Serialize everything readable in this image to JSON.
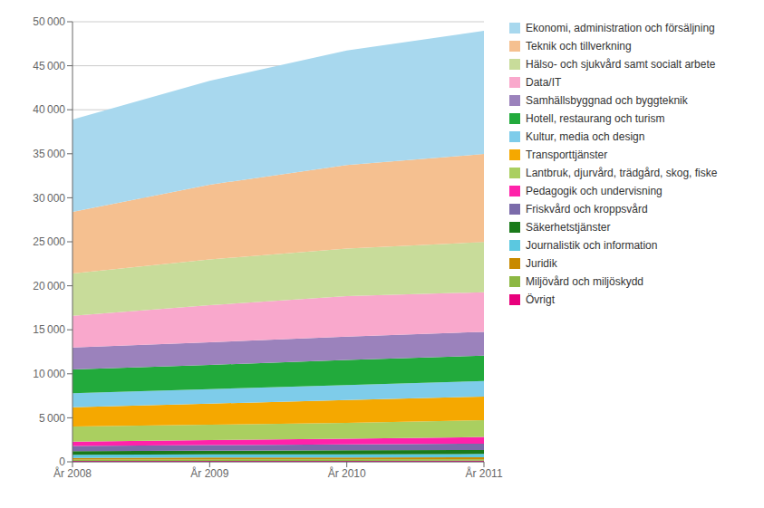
{
  "chart_data": {
    "type": "area",
    "stacked": true,
    "grid": true,
    "legend": "right",
    "categories": [
      "År 2008",
      "År 2009",
      "År 2010",
      "År 2011"
    ],
    "series": [
      {
        "name": "Övrigt",
        "color": "#E8007C",
        "values": [
          100,
          110,
          110,
          120
        ]
      },
      {
        "name": "Miljövård och miljöskydd",
        "color": "#8DB843",
        "values": [
          150,
          160,
          165,
          170
        ]
      },
      {
        "name": "Juridik",
        "color": "#C88A00",
        "values": [
          200,
          210,
          215,
          220
        ]
      },
      {
        "name": "Journalistik och information",
        "color": "#5BC8E0",
        "values": [
          350,
          360,
          370,
          380
        ]
      },
      {
        "name": "Säkerhetstjänster",
        "color": "#1A7A1A",
        "values": [
          400,
          420,
          440,
          460
        ]
      },
      {
        "name": "Friskvård och kroppsvård",
        "color": "#7B6BAA",
        "values": [
          600,
          640,
          680,
          720
        ]
      },
      {
        "name": "Pedagogik och undervisning",
        "color": "#FF22AA",
        "values": [
          500,
          560,
          650,
          750
        ]
      },
      {
        "name": "Lantbruk, djurvård, trädgård, skog, fiske",
        "color": "#AACF60",
        "values": [
          1700,
          1750,
          1800,
          1900
        ]
      },
      {
        "name": "Transporttjänster",
        "color": "#F5A800",
        "values": [
          2200,
          2400,
          2600,
          2700
        ]
      },
      {
        "name": "Kultur, media och design",
        "color": "#7ECCEA",
        "values": [
          1600,
          1650,
          1700,
          1750
        ]
      },
      {
        "name": "Hotell, restaurang och turism",
        "color": "#22AA3C",
        "values": [
          2700,
          2750,
          2850,
          2900
        ]
      },
      {
        "name": "Samhällsbyggnad och byggteknik",
        "color": "#9B82BC",
        "values": [
          2500,
          2580,
          2650,
          2700
        ]
      },
      {
        "name": "Data/IT",
        "color": "#F9A8CC",
        "values": [
          3600,
          4200,
          4600,
          4500
        ]
      },
      {
        "name": "Hälso- och sjukvård samt socialt arbete",
        "color": "#C8DC9A",
        "values": [
          4800,
          5200,
          5400,
          5700
        ]
      },
      {
        "name": "Teknik och tillverkning",
        "color": "#F5C090",
        "values": [
          7000,
          8500,
          9500,
          10000
        ]
      },
      {
        "name": "Ekonomi, administration och försäljning",
        "color": "#A8D8EE",
        "values": [
          10500,
          11800,
          13000,
          14000
        ]
      }
    ],
    "ylim": [
      0,
      50000
    ],
    "yticks": [
      0,
      {
        "value": 5000,
        "label": "5 000"
      },
      {
        "value": 10000,
        "label": "10 000"
      },
      {
        "value": 15000,
        "label": "15 000"
      },
      {
        "value": 20000,
        "label": "20 000"
      },
      {
        "value": 25000,
        "label": "25 000"
      },
      {
        "value": 30000,
        "label": "30 000"
      },
      {
        "value": 35000,
        "label": "35 000"
      },
      {
        "value": 40000,
        "label": "40 000"
      },
      {
        "value": 45000,
        "label": "45 000"
      },
      {
        "value": 50000,
        "label": "50 000"
      }
    ]
  }
}
